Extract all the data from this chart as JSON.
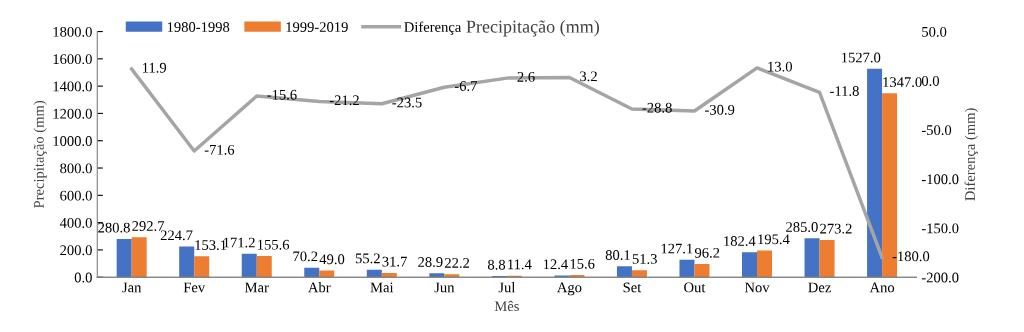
{
  "chart_data": {
    "type": "bar",
    "title": "Precipitação (mm)",
    "xlabel": "Mês",
    "ylabel": "Precipitação (mm)",
    "y2label": "Diferença (mm)",
    "categories": [
      "Jan",
      "Fev",
      "Mar",
      "Abr",
      "Mai",
      "Jun",
      "Jul",
      "Ago",
      "Set",
      "Out",
      "Nov",
      "Dez",
      "Ano"
    ],
    "series": [
      {
        "name": "1980-1998",
        "color": "#4472c4",
        "values": [
          280.8,
          224.7,
          171.2,
          70.2,
          55.2,
          28.9,
          8.8,
          12.4,
          80.1,
          127.1,
          182.4,
          285.0,
          1527.0
        ],
        "value_labels": [
          "280.8",
          "224.7",
          "171.2",
          "70.2",
          "55.2",
          "28.9",
          "8.8",
          "12.4",
          "80.1",
          "127.1",
          "182.4",
          "285.0",
          "1527.0"
        ]
      },
      {
        "name": "1999-2019",
        "color": "#ed7d31",
        "values": [
          292.7,
          153.1,
          155.6,
          49.0,
          31.7,
          22.2,
          11.4,
          15.6,
          51.3,
          96.2,
          195.4,
          273.2,
          1347.0
        ],
        "value_labels": [
          "292.7",
          "153.1",
          "155.6",
          "49.0",
          "31.7",
          "22.2",
          "11.4",
          "15.6",
          "51.3",
          "96.2",
          "195.4",
          "273.2",
          "1347.0"
        ]
      },
      {
        "name": "Diferença",
        "type": "line",
        "axis": "y2",
        "color": "#a5a5a5",
        "values": [
          11.9,
          -71.6,
          -15.6,
          -21.2,
          -23.5,
          -6.7,
          2.6,
          3.2,
          -28.8,
          -30.9,
          13.0,
          -11.8,
          -180.0
        ],
        "value_labels": [
          "11.9",
          "-71.6",
          "-15.6",
          "-21.2",
          "-23.5",
          "-6.7",
          "2.6",
          "3.2",
          "-28.8",
          "-30.9",
          "13.0",
          "-11.8",
          "-180.0"
        ]
      }
    ],
    "legend": "top",
    "grid": false,
    "marker": "none",
    "line_style": "solid",
    "ylim": [
      0,
      1800
    ],
    "yticks": [
      {
        "value": 0,
        "label": "0.0"
      },
      {
        "value": 200,
        "label": "200.0"
      },
      {
        "value": 400,
        "label": "400.0"
      },
      {
        "value": 600,
        "label": "600.0"
      },
      {
        "value": 800,
        "label": "800.0"
      },
      {
        "value": 1000,
        "label": "1000.0"
      },
      {
        "value": 1200,
        "label": "1200.0"
      },
      {
        "value": 1400,
        "label": "1400.0"
      },
      {
        "value": 1600,
        "label": "1600.0"
      },
      {
        "value": 1800,
        "label": "1800.0"
      }
    ],
    "y2lim": [
      -200,
      50
    ],
    "y2ticks": [
      {
        "value": -200,
        "label": "-200.0"
      },
      {
        "value": -150,
        "label": "-150.0"
      },
      {
        "value": -100,
        "label": "-100.0"
      },
      {
        "value": -50,
        "label": "-50.0"
      },
      {
        "value": 0,
        "label": "0.0"
      },
      {
        "value": 50,
        "label": "50.0"
      }
    ]
  }
}
